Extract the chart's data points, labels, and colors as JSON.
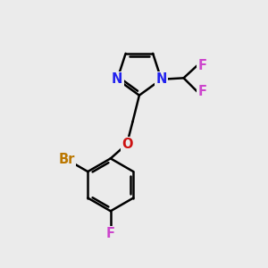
{
  "background_color": "#ebebeb",
  "bond_color": "#000000",
  "bond_width": 1.8,
  "atom_labels": {
    "N1": {
      "text": "N",
      "color": "#2222ee",
      "fontsize": 10.5
    },
    "N3": {
      "text": "N",
      "color": "#2222ee",
      "fontsize": 10.5
    },
    "O": {
      "text": "O",
      "color": "#cc1111",
      "fontsize": 10.5
    },
    "Br": {
      "text": "Br",
      "color": "#bb7700",
      "fontsize": 10.5
    },
    "F1": {
      "text": "F",
      "color": "#cc44cc",
      "fontsize": 10.5
    },
    "F2": {
      "text": "F",
      "color": "#cc44cc",
      "fontsize": 10.5
    },
    "F3": {
      "text": "F",
      "color": "#cc44cc",
      "fontsize": 10.5
    }
  },
  "xlim": [
    0,
    10
  ],
  "ylim": [
    0,
    10
  ],
  "figsize": [
    3.0,
    3.0
  ],
  "dpi": 100
}
